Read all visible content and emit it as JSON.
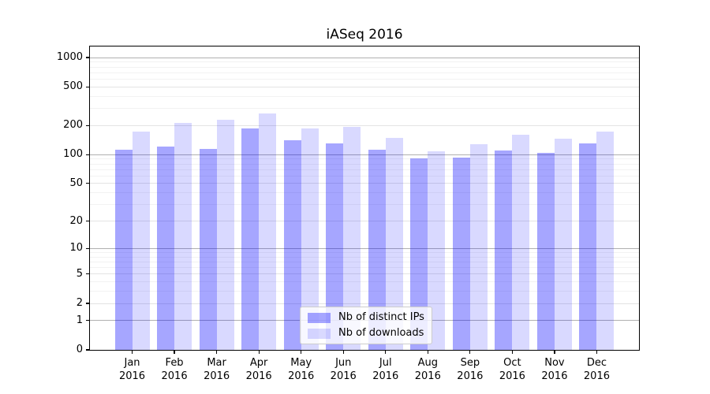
{
  "chart_data": {
    "type": "bar",
    "title": "iASeq 2016",
    "scale": "log(value+1), 0 at baseline",
    "categories": [
      "Jan",
      "Feb",
      "Mar",
      "Apr",
      "May",
      "Jun",
      "Jul",
      "Aug",
      "Sep",
      "Oct",
      "Nov",
      "Dec"
    ],
    "year": "2016",
    "series": [
      {
        "name": "Nb of distinct IPs",
        "color": "#0000ff",
        "alpha": 0.35,
        "values": [
          112,
          121,
          114,
          186,
          140,
          130,
          113,
          91,
          93,
          110,
          105,
          130
        ]
      },
      {
        "name": "Nb of downloads",
        "color": "#0000ff",
        "alpha": 0.15,
        "values": [
          172,
          212,
          230,
          268,
          185,
          192,
          150,
          108,
          129,
          160,
          145,
          173
        ]
      }
    ],
    "y_ticks": [
      1000,
      500,
      200,
      100,
      50,
      20,
      10,
      5,
      2,
      1,
      0
    ],
    "ylim": [
      0,
      1300
    ],
    "grid": true,
    "legend_position": "lower-center-inside",
    "gridlines": {
      "major_values": [
        1,
        10,
        100,
        1000
      ],
      "mid_values": [
        2,
        5,
        20,
        50,
        200,
        500
      ],
      "minor_values": [
        3,
        4,
        6,
        7,
        8,
        9,
        30,
        40,
        60,
        70,
        80,
        90,
        300,
        400,
        600,
        700,
        800,
        900
      ]
    },
    "colors": {
      "grid_major": "#b0b0b0",
      "grid_mid": "#e3e3e3",
      "grid_minor": "#f2f2f2",
      "frame": "#000000",
      "legend_border": "#cccccc",
      "background": "#ffffff"
    }
  }
}
